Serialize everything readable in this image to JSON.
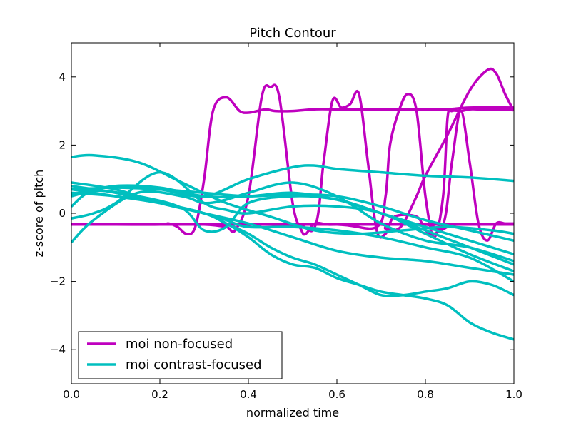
{
  "chart_data": {
    "type": "line",
    "title": "Pitch Contour",
    "xlabel": "normalized time",
    "ylabel": "z-score of pitch",
    "xlim": [
      0.0,
      1.0
    ],
    "ylim": [
      -5,
      5
    ],
    "xticks": [
      0.0,
      0.2,
      0.4,
      0.6,
      0.8,
      1.0
    ],
    "xtick_labels": [
      "0.0",
      "0.2",
      "0.4",
      "0.6",
      "0.8",
      "1.0"
    ],
    "yticks": [
      -4,
      -2,
      0,
      2,
      4
    ],
    "ytick_labels": [
      "−4",
      "−2",
      "0",
      "2",
      "4"
    ],
    "grid": false,
    "legend_position": "lower-left",
    "legend": [
      {
        "label": "moi non-focused",
        "color": "#bf00bf"
      },
      {
        "label": "moi contrast-focused",
        "color": "#00bfbf"
      }
    ],
    "series": [
      {
        "group": "moi non-focused",
        "color": "#bf00bf",
        "x": [
          0,
          0.2,
          0.4,
          0.6,
          0.8,
          1.0
        ],
        "y": [
          -0.33,
          -0.33,
          -0.33,
          -0.33,
          -0.33,
          -0.33
        ]
      },
      {
        "group": "moi non-focused",
        "color": "#bf00bf",
        "x": [
          0,
          0.1,
          0.2,
          0.22,
          0.24,
          0.26,
          0.28,
          0.3,
          0.32,
          0.35,
          0.38,
          0.4,
          0.42,
          0.44,
          0.46,
          0.5,
          0.55,
          0.6,
          0.65,
          0.7,
          0.75,
          0.8,
          0.85,
          0.9,
          1.0
        ],
        "y": [
          -0.33,
          -0.33,
          -0.33,
          -0.3,
          -0.4,
          -0.6,
          -0.4,
          1.0,
          3.0,
          3.4,
          3.0,
          2.95,
          3.0,
          3.05,
          3.0,
          3.0,
          3.05,
          3.05,
          3.05,
          3.05,
          3.05,
          3.05,
          3.05,
          3.1,
          3.1
        ]
      },
      {
        "group": "moi non-focused",
        "color": "#bf00bf",
        "x": [
          0,
          0.2,
          0.3,
          0.35,
          0.37,
          0.4,
          0.43,
          0.45,
          0.47,
          0.5,
          0.52,
          0.53,
          0.55,
          0.58,
          0.6,
          0.7,
          0.8,
          1.0
        ],
        "y": [
          -0.33,
          -0.33,
          -0.33,
          -0.4,
          -0.5,
          0.5,
          3.4,
          3.7,
          3.4,
          0.3,
          -0.5,
          -0.6,
          -0.3,
          -0.33,
          -0.33,
          -0.33,
          -0.33,
          -0.33
        ]
      },
      {
        "group": "moi non-focused",
        "color": "#bf00bf",
        "x": [
          0,
          0.3,
          0.5,
          0.55,
          0.57,
          0.59,
          0.61,
          0.63,
          0.65,
          0.67,
          0.69,
          0.71,
          0.73,
          0.78,
          0.8,
          0.82,
          0.86,
          0.88,
          0.9,
          0.94,
          0.97,
          1.0
        ],
        "y": [
          -0.33,
          -0.33,
          -0.33,
          -0.4,
          1.5,
          3.3,
          3.1,
          3.2,
          3.5,
          1.5,
          -0.5,
          -0.6,
          -0.1,
          -0.1,
          -0.5,
          -0.6,
          -0.33,
          -0.33,
          -0.33,
          -0.33,
          -0.33,
          -0.33
        ]
      },
      {
        "group": "moi non-focused",
        "color": "#bf00bf",
        "x": [
          0,
          0.4,
          0.6,
          0.7,
          0.71,
          0.73,
          0.75,
          0.78,
          0.8,
          0.85,
          0.9,
          0.94,
          0.96,
          0.98,
          1.0
        ],
        "y": [
          -0.33,
          -0.33,
          -0.33,
          -0.33,
          -0.45,
          -0.5,
          -0.3,
          0.5,
          1.1,
          2.3,
          3.6,
          4.2,
          4.1,
          3.5,
          3.0
        ]
      },
      {
        "group": "moi non-focused",
        "color": "#bf00bf",
        "x": [
          0,
          0.4,
          0.6,
          0.69,
          0.71,
          0.72,
          0.74,
          0.76,
          0.78,
          0.8,
          0.82,
          0.84,
          0.85,
          0.86,
          0.88,
          0.9,
          0.92,
          0.95,
          1.0
        ],
        "y": [
          -0.33,
          -0.33,
          -0.33,
          -0.4,
          0.5,
          2.0,
          3.0,
          3.5,
          3.0,
          0.5,
          -0.7,
          0.5,
          2.8,
          3.0,
          3.0,
          3.05,
          3.05,
          3.05,
          3.05
        ]
      },
      {
        "group": "moi non-focused",
        "color": "#bf00bf",
        "x": [
          0,
          0.6,
          0.7,
          0.8,
          0.84,
          0.86,
          0.88,
          0.9,
          0.92,
          0.94,
          0.96,
          0.98,
          1.0
        ],
        "y": [
          -0.33,
          -0.33,
          -0.33,
          -0.33,
          -0.33,
          1.5,
          3.0,
          1.5,
          -0.3,
          -0.8,
          -0.3,
          -0.3,
          -0.3
        ]
      },
      {
        "group": "moi contrast-focused",
        "color": "#00bfbf",
        "x": [
          0,
          0.05,
          0.15,
          0.25,
          0.35,
          0.45,
          0.55,
          0.65,
          0.75,
          0.85,
          0.95,
          1.0
        ],
        "y": [
          1.65,
          1.7,
          1.5,
          0.9,
          0.3,
          -0.1,
          -0.5,
          -0.6,
          -0.5,
          -0.4,
          -0.5,
          -0.6
        ]
      },
      {
        "group": "moi contrast-focused",
        "color": "#00bfbf",
        "x": [
          0,
          0.1,
          0.2,
          0.3,
          0.4,
          0.5,
          0.55,
          0.6,
          0.7,
          0.8,
          0.9,
          1.0
        ],
        "y": [
          0.5,
          0.8,
          0.7,
          0.5,
          1.0,
          1.35,
          1.4,
          1.3,
          1.2,
          1.1,
          1.05,
          0.95
        ]
      },
      {
        "group": "moi contrast-focused",
        "color": "#00bfbf",
        "x": [
          0,
          0.1,
          0.2,
          0.3,
          0.4,
          0.5,
          0.6,
          0.7,
          0.8,
          0.9,
          1.0
        ],
        "y": [
          0.9,
          0.7,
          0.3,
          0.0,
          -0.3,
          -0.7,
          -1.1,
          -1.3,
          -1.4,
          -1.6,
          -1.8
        ]
      },
      {
        "group": "moi contrast-focused",
        "color": "#00bfbf",
        "x": [
          0,
          0.1,
          0.2,
          0.3,
          0.4,
          0.5,
          0.6,
          0.7,
          0.8,
          0.9,
          1.0
        ],
        "y": [
          0.7,
          0.75,
          0.7,
          0.6,
          0.5,
          0.55,
          0.5,
          0.2,
          -0.2,
          -0.5,
          -0.8
        ]
      },
      {
        "group": "moi contrast-focused",
        "color": "#00bfbf",
        "x": [
          0,
          0.1,
          0.2,
          0.3,
          0.4,
          0.5,
          0.6,
          0.7,
          0.8,
          0.9,
          1.0
        ],
        "y": [
          0.55,
          0.8,
          0.75,
          0.5,
          0.5,
          0.6,
          0.4,
          0.0,
          -0.4,
          -0.8,
          -1.2
        ]
      },
      {
        "group": "moi contrast-focused",
        "color": "#00bfbf",
        "x": [
          0,
          0.05,
          0.15,
          0.25,
          0.3,
          0.35,
          0.4,
          0.5,
          0.6,
          0.7,
          0.8,
          0.9,
          1.0
        ],
        "y": [
          -0.85,
          -0.2,
          0.6,
          0.5,
          0.3,
          0.4,
          0.6,
          0.9,
          0.5,
          -0.3,
          -0.8,
          -1.0,
          -1.4
        ]
      },
      {
        "group": "moi contrast-focused",
        "color": "#00bfbf",
        "x": [
          0,
          0.05,
          0.15,
          0.25,
          0.3,
          0.35,
          0.4,
          0.5,
          0.6,
          0.7,
          0.8,
          0.9,
          1.0
        ],
        "y": [
          0.2,
          0.65,
          0.5,
          0.15,
          -0.5,
          -0.4,
          0.3,
          0.5,
          0.4,
          0.0,
          -0.5,
          -1.0,
          -1.5
        ]
      },
      {
        "group": "moi contrast-focused",
        "color": "#00bfbf",
        "x": [
          0,
          0.05,
          0.1,
          0.2,
          0.3,
          0.35,
          0.4,
          0.5,
          0.6,
          0.7,
          0.8,
          0.9,
          1.0
        ],
        "y": [
          -0.15,
          0.0,
          0.3,
          1.2,
          0.3,
          0.1,
          0.0,
          0.2,
          0.2,
          0.0,
          -0.6,
          -1.2,
          -1.7
        ]
      },
      {
        "group": "moi contrast-focused",
        "color": "#00bfbf",
        "x": [
          0,
          0.1,
          0.2,
          0.3,
          0.35,
          0.4,
          0.5,
          0.6,
          0.7,
          0.8,
          0.9,
          1.0
        ],
        "y": [
          0.6,
          0.5,
          0.3,
          0.0,
          -0.2,
          -0.4,
          -0.4,
          -0.5,
          -0.7,
          -1.0,
          -1.3,
          -2.0
        ]
      },
      {
        "group": "moi contrast-focused",
        "color": "#00bfbf",
        "x": [
          0,
          0.1,
          0.2,
          0.3,
          0.35,
          0.4,
          0.45,
          0.5,
          0.55,
          0.6,
          0.65,
          0.7,
          0.75,
          0.8,
          0.85,
          0.9,
          0.95,
          1.0
        ],
        "y": [
          0.8,
          0.6,
          0.3,
          0.0,
          -0.3,
          -0.6,
          -1.0,
          -1.3,
          -1.5,
          -1.8,
          -2.1,
          -2.4,
          -2.4,
          -2.3,
          -2.2,
          -2.0,
          -2.1,
          -2.4
        ]
      },
      {
        "group": "moi contrast-focused",
        "color": "#00bfbf",
        "x": [
          0,
          0.1,
          0.2,
          0.3,
          0.35,
          0.4,
          0.45,
          0.5,
          0.55,
          0.6,
          0.65,
          0.7,
          0.75,
          0.8,
          0.85,
          0.9,
          0.95,
          1.0
        ],
        "y": [
          0.7,
          0.5,
          0.3,
          0.0,
          -0.3,
          -0.7,
          -1.2,
          -1.5,
          -1.6,
          -1.9,
          -2.1,
          -2.3,
          -2.4,
          -2.5,
          -2.7,
          -3.2,
          -3.5,
          -3.7
        ]
      }
    ]
  }
}
